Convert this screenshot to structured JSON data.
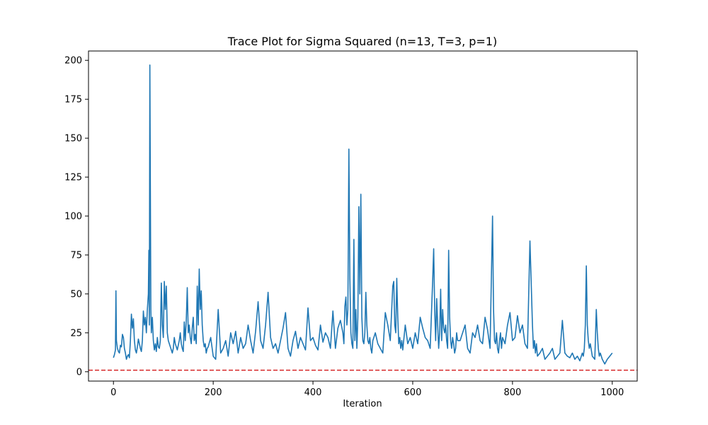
{
  "chart_data": {
    "type": "line",
    "title": "Trace Plot for Sigma Squared (n=13, T=3, p=1)",
    "xlabel": "Iteration",
    "ylabel": "",
    "xlim": [
      -50,
      1050
    ],
    "ylim": [
      -6,
      206
    ],
    "xticks": [
      0,
      200,
      400,
      600,
      800,
      1000
    ],
    "yticks": [
      0,
      25,
      50,
      75,
      100,
      125,
      150,
      175,
      200
    ],
    "grid": false,
    "legend": "none",
    "series": [
      {
        "color": "#1f77b4",
        "x": [
          0,
          2,
          4,
          5,
          6,
          8,
          10,
          12,
          14,
          16,
          18,
          20,
          22,
          24,
          26,
          28,
          30,
          32,
          34,
          36,
          38,
          40,
          42,
          44,
          46,
          48,
          50,
          52,
          54,
          56,
          58,
          60,
          62,
          64,
          66,
          68,
          70,
          71,
          72,
          73,
          74,
          75,
          76,
          78,
          80,
          82,
          84,
          86,
          88,
          90,
          92,
          94,
          96,
          98,
          100,
          102,
          104,
          106,
          108,
          110,
          112,
          114,
          116,
          118,
          120,
          122,
          124,
          126,
          128,
          130,
          132,
          134,
          136,
          138,
          140,
          142,
          144,
          146,
          148,
          150,
          152,
          154,
          156,
          158,
          160,
          162,
          164,
          166,
          168,
          170,
          172,
          174,
          176,
          178,
          180,
          182,
          184,
          186,
          188,
          190,
          195,
          200,
          205,
          210,
          215,
          220,
          225,
          230,
          235,
          240,
          245,
          250,
          255,
          260,
          265,
          270,
          275,
          280,
          285,
          290,
          295,
          300,
          305,
          310,
          315,
          320,
          325,
          330,
          335,
          340,
          345,
          350,
          355,
          360,
          365,
          370,
          375,
          380,
          385,
          390,
          395,
          400,
          405,
          410,
          415,
          420,
          425,
          430,
          435,
          440,
          445,
          450,
          455,
          460,
          462,
          464,
          466,
          468,
          470,
          472,
          474,
          476,
          478,
          480,
          482,
          484,
          486,
          488,
          490,
          492,
          494,
          496,
          498,
          500,
          502,
          504,
          506,
          508,
          510,
          512,
          514,
          516,
          518,
          520,
          525,
          530,
          535,
          540,
          545,
          550,
          555,
          560,
          562,
          564,
          566,
          568,
          570,
          572,
          574,
          576,
          578,
          580,
          585,
          590,
          595,
          600,
          605,
          610,
          615,
          620,
          625,
          630,
          635,
          640,
          642,
          644,
          646,
          648,
          650,
          652,
          654,
          656,
          658,
          660,
          662,
          664,
          666,
          668,
          670,
          672,
          674,
          676,
          678,
          680,
          682,
          684,
          686,
          688,
          690,
          695,
          700,
          705,
          710,
          715,
          720,
          725,
          730,
          735,
          740,
          745,
          750,
          755,
          760,
          762,
          764,
          766,
          768,
          770,
          772,
          774,
          776,
          778,
          780,
          785,
          790,
          795,
          800,
          805,
          810,
          815,
          820,
          825,
          830,
          835,
          840,
          842,
          844,
          846,
          848,
          850,
          855,
          860,
          865,
          870,
          875,
          880,
          885,
          890,
          895,
          900,
          905,
          910,
          915,
          920,
          925,
          930,
          935,
          940,
          942,
          944,
          946,
          948,
          950,
          952,
          954,
          956,
          960,
          965,
          968,
          970,
          972,
          974,
          976,
          980,
          985,
          990,
          995,
          1000
        ],
        "y": [
          9,
          11,
          14,
          52,
          20,
          15,
          13,
          12,
          17,
          16,
          24,
          22,
          15,
          12,
          8,
          10,
          11,
          9,
          20,
          37,
          28,
          34,
          20,
          14,
          12,
          16,
          21,
          18,
          15,
          13,
          20,
          39,
          30,
          35,
          25,
          40,
          50,
          78,
          30,
          197,
          120,
          40,
          25,
          35,
          20,
          14,
          18,
          13,
          22,
          16,
          15,
          20,
          57,
          30,
          22,
          58,
          40,
          55,
          25,
          20,
          18,
          16,
          14,
          12,
          15,
          22,
          18,
          16,
          14,
          17,
          20,
          25,
          18,
          15,
          13,
          32,
          20,
          33,
          54,
          25,
          30,
          22,
          18,
          28,
          35,
          20,
          24,
          18,
          55,
          30,
          66,
          40,
          52,
          30,
          20,
          16,
          18,
          12,
          15,
          16,
          22,
          10,
          8,
          40,
          12,
          15,
          20,
          10,
          25,
          18,
          26,
          12,
          22,
          15,
          18,
          30,
          20,
          12,
          26,
          45,
          20,
          15,
          30,
          51,
          22,
          15,
          18,
          12,
          20,
          28,
          38,
          15,
          10,
          20,
          26,
          15,
          22,
          18,
          14,
          41,
          20,
          22,
          17,
          14,
          30,
          19,
          25,
          22,
          15,
          39,
          15,
          28,
          33,
          25,
          18,
          42,
          48,
          30,
          40,
          143,
          60,
          25,
          18,
          15,
          85,
          20,
          40,
          15,
          35,
          106,
          50,
          114,
          35,
          20,
          18,
          25,
          51,
          30,
          20,
          18,
          22,
          15,
          12,
          20,
          25,
          18,
          15,
          12,
          38,
          30,
          20,
          55,
          58,
          30,
          25,
          60,
          35,
          18,
          22,
          15,
          20,
          14,
          30,
          18,
          22,
          15,
          25,
          18,
          35,
          28,
          22,
          20,
          15,
          59,
          79,
          40,
          20,
          47,
          30,
          15,
          25,
          53,
          20,
          40,
          28,
          25,
          30,
          20,
          15,
          78,
          35,
          20,
          15,
          22,
          18,
          12,
          15,
          25,
          20,
          20,
          25,
          30,
          15,
          12,
          25,
          22,
          30,
          20,
          18,
          35,
          27,
          15,
          100,
          40,
          20,
          18,
          25,
          15,
          12,
          20,
          25,
          15,
          22,
          18,
          30,
          38,
          20,
          22,
          36,
          25,
          30,
          18,
          15,
          84,
          30,
          15,
          20,
          12,
          18,
          10,
          12,
          15,
          8,
          10,
          12,
          15,
          8,
          10,
          12,
          33,
          12,
          10,
          9,
          12,
          8,
          10,
          7,
          12,
          10,
          15,
          30,
          68,
          30,
          20,
          15,
          18,
          10,
          8,
          40,
          25,
          15,
          10,
          12,
          8,
          5,
          8,
          10,
          12
        ]
      },
      {
        "color": "#d62728",
        "dash": "dashed",
        "y_constant": 1
      }
    ]
  }
}
